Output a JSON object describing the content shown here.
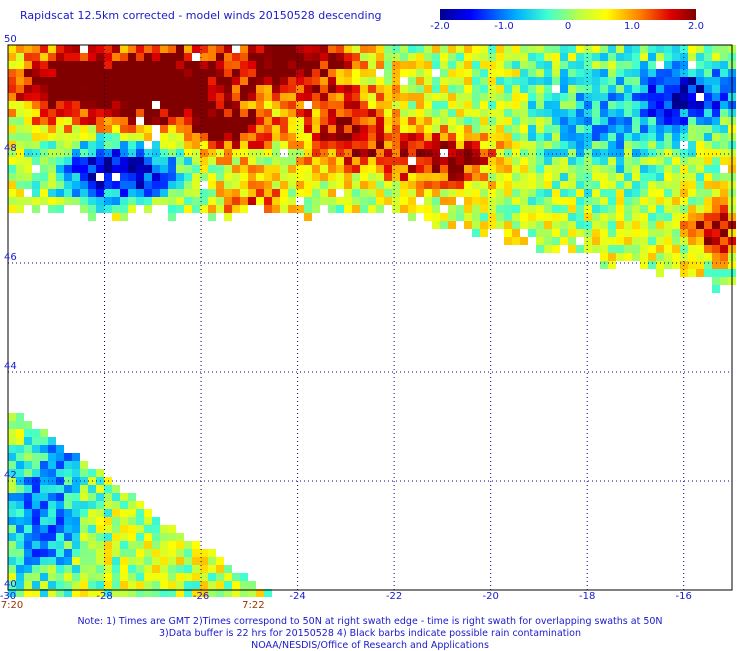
{
  "title": "Rapidscat 12.5km corrected - model winds 20150528 descending",
  "colorbar": {
    "tick_labels": [
      "-2.0",
      "-1.0",
      "0",
      "1.0",
      "2.0"
    ],
    "tick_values": [
      -2.0,
      -1.0,
      0,
      1.0,
      2.0
    ],
    "range": [
      -2.0,
      2.0
    ]
  },
  "map": {
    "lon_range": [
      -30,
      -15
    ],
    "lat_range": [
      40,
      50
    ],
    "lon_labels": [
      "-30",
      "-28",
      "-26",
      "-24",
      "-22",
      "-20",
      "-18",
      "-16"
    ],
    "lon_label_values": [
      -30,
      -28,
      -26,
      -24,
      -22,
      -20,
      -18,
      -16
    ],
    "lat_labels": [
      "50",
      "48",
      "46",
      "44",
      "42",
      "40"
    ],
    "lat_label_values": [
      50,
      48,
      46,
      44,
      42,
      40
    ],
    "grid": true,
    "time_labels": [
      "7:20",
      "7:22"
    ],
    "time_label_lons": [
      -30,
      -25
    ]
  },
  "notes": [
    "Note: 1) Times are GMT 2)Times correspond to 50N at right swath edge - time is right swath for overlapping swaths at 50N",
    "3)Data buffer is 22 hrs for 20150528 4) Black barbs indicate possible rain contamination",
    "NOAA/NESDIS/Office of Research and Applications"
  ]
}
